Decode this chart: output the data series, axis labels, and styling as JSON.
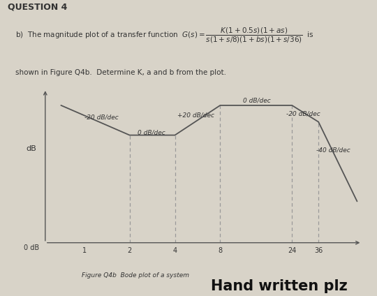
{
  "title_q": "QUESTION 4",
  "formula_text": "b)  The magnitude plot of a transfer function  G(s) =",
  "formula_num": "K(1+0.5s)(1+as)",
  "formula_den": "s(1+s/8)(1+bs)(1+s/36)",
  "subtitle2": "shown in Figure Q4b.  Determine K, a and b from the plot.",
  "ylabel": "dB",
  "y0dB_label": "0 dB",
  "fig_caption": "Figure Q4b  Bode plot of a system",
  "watermark": "Hand written plz",
  "background_color": "#d8d3c8",
  "line_color": "#555555",
  "dashed_color": "#999999",
  "text_color": "#333333",
  "watermark_color": "#111111",
  "breakpoints_x": [
    2,
    4,
    8,
    24,
    36
  ],
  "xlabel_ticks": [
    1,
    2,
    4,
    8,
    24,
    36
  ],
  "xlabel_labels": [
    "1",
    "2",
    "4",
    "8",
    "24",
    "36"
  ],
  "plot_points_x": [
    0.7,
    2,
    4,
    8,
    24,
    36,
    65
  ],
  "plot_points_y": [
    28,
    10,
    10,
    28,
    28,
    18,
    -30
  ],
  "slope_labels": [
    {
      "text": "+20 dB/dec",
      "xf": 5.5,
      "y": 22
    },
    {
      "text": "-20 dB/dec",
      "xf": 1.3,
      "y": 21
    },
    {
      "text": "0 dB/dec",
      "xf": 2.8,
      "y": 11.5
    },
    {
      "text": "0 dB/dec",
      "xf": 14.0,
      "y": 31
    },
    {
      "text": "-20 dB/dec",
      "xf": 28.5,
      "y": 23
    },
    {
      "text": "-40 dB/dec",
      "xf": 45.0,
      "y": 1
    }
  ],
  "xlim_lo": 0.55,
  "xlim_hi": 70,
  "ylim_lo": -55,
  "ylim_hi": 38
}
